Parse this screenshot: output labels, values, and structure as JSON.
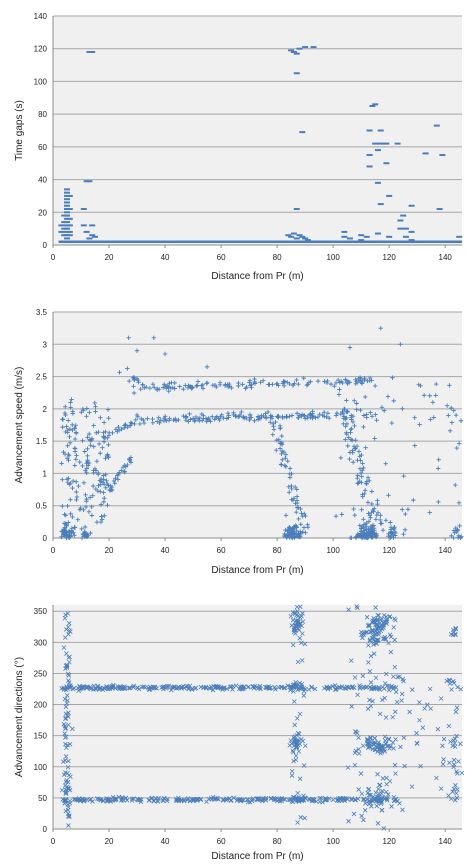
{
  "colors": {
    "series": "#4a7ebb",
    "plot_bg": "#f0f0f0",
    "grid": "#a6a6a6",
    "axis": "#8c8c8c",
    "text": "#222222"
  },
  "chart_data": [
    {
      "type": "scatter",
      "marker": "dash",
      "xlabel": "Distance from Pr (m)",
      "ylabel": "Time gaps (s)",
      "xlim": [
        0,
        146
      ],
      "ylim": [
        0,
        140
      ],
      "xticks": [
        0,
        20,
        40,
        60,
        80,
        100,
        120,
        140
      ],
      "yticks": [
        0,
        20,
        40,
        60,
        80,
        100,
        120,
        140
      ],
      "grid": true,
      "points": [
        [
          5,
          34
        ],
        [
          5,
          32
        ],
        [
          5,
          30
        ],
        [
          5,
          28
        ],
        [
          5,
          26
        ],
        [
          5,
          24
        ],
        [
          5,
          22
        ],
        [
          5,
          20
        ],
        [
          5,
          18
        ],
        [
          5,
          16
        ],
        [
          5,
          14
        ],
        [
          5,
          12
        ],
        [
          5,
          10
        ],
        [
          5,
          8
        ],
        [
          5,
          6
        ],
        [
          5,
          4
        ],
        [
          4,
          18
        ],
        [
          4,
          14
        ],
        [
          4,
          10
        ],
        [
          4,
          6
        ],
        [
          3,
          12
        ],
        [
          3,
          8
        ],
        [
          6,
          30
        ],
        [
          6,
          22
        ],
        [
          6,
          16
        ],
        [
          6,
          12
        ],
        [
          6,
          8
        ],
        [
          6,
          6
        ],
        [
          13,
          118
        ],
        [
          14,
          118
        ],
        [
          12,
          39
        ],
        [
          13,
          39
        ],
        [
          11,
          22
        ],
        [
          11,
          12
        ],
        [
          12,
          8
        ],
        [
          14,
          12
        ],
        [
          14,
          6
        ],
        [
          13,
          4
        ],
        [
          15,
          5
        ],
        [
          85,
          119
        ],
        [
          86,
          118
        ],
        [
          87,
          117
        ],
        [
          87,
          105
        ],
        [
          88,
          120
        ],
        [
          90,
          121
        ],
        [
          93,
          121
        ],
        [
          87,
          22
        ],
        [
          89,
          69
        ],
        [
          84,
          6
        ],
        [
          85,
          5
        ],
        [
          86,
          7
        ],
        [
          87,
          4
        ],
        [
          88,
          6
        ],
        [
          89,
          5
        ],
        [
          90,
          4
        ],
        [
          91,
          3
        ],
        [
          104,
          8
        ],
        [
          104,
          5
        ],
        [
          106,
          4
        ],
        [
          110,
          6
        ],
        [
          110,
          3
        ],
        [
          112,
          5
        ],
        [
          113,
          48
        ],
        [
          113,
          70
        ],
        [
          113,
          55
        ],
        [
          114,
          85
        ],
        [
          115,
          86
        ],
        [
          115,
          62
        ],
        [
          116,
          58
        ],
        [
          116,
          38
        ],
        [
          116,
          7
        ],
        [
          117,
          70
        ],
        [
          117,
          25
        ],
        [
          117,
          62
        ],
        [
          118,
          62
        ],
        [
          119,
          62
        ],
        [
          119,
          50
        ],
        [
          120,
          30
        ],
        [
          120,
          5
        ],
        [
          121,
          2
        ],
        [
          123,
          62
        ],
        [
          124,
          15
        ],
        [
          124,
          10
        ],
        [
          125,
          18
        ],
        [
          126,
          10
        ],
        [
          126,
          5
        ],
        [
          128,
          8
        ],
        [
          128,
          3
        ],
        [
          128,
          24
        ],
        [
          133,
          56
        ],
        [
          137,
          2
        ],
        [
          137,
          73
        ],
        [
          138,
          22
        ],
        [
          139,
          55
        ],
        [
          145,
          5
        ]
      ],
      "baseline": {
        "y": 2,
        "from": 2,
        "to": 146
      }
    },
    {
      "type": "scatter",
      "marker": "plus",
      "xlabel": "Distance from Pr (m)",
      "ylabel": "Advancement speed (m/s)",
      "xlim": [
        0,
        146
      ],
      "ylim": [
        0,
        3.5
      ],
      "xticks": [
        0,
        20,
        40,
        60,
        80,
        100,
        120,
        140
      ],
      "yticks": [
        0,
        0.5,
        1,
        1.5,
        2,
        2.5,
        3,
        3.5
      ],
      "ytick_labels": [
        "0",
        "0.5",
        "1",
        "1.5",
        "2",
        "2.5",
        "3",
        "3.5"
      ],
      "grid": true,
      "seed": 20240611
    },
    {
      "type": "scatter",
      "marker": "cross",
      "xlabel": "Distance from Pr (m)",
      "ylabel": "Advancement directions (°)",
      "xlim": [
        0,
        146
      ],
      "ylim": [
        0,
        360
      ],
      "xticks": [
        0,
        20,
        40,
        60,
        80,
        100,
        120,
        140
      ],
      "yticks": [
        0,
        50,
        100,
        150,
        200,
        250,
        300,
        350
      ],
      "grid": true,
      "seed": 77123
    }
  ]
}
